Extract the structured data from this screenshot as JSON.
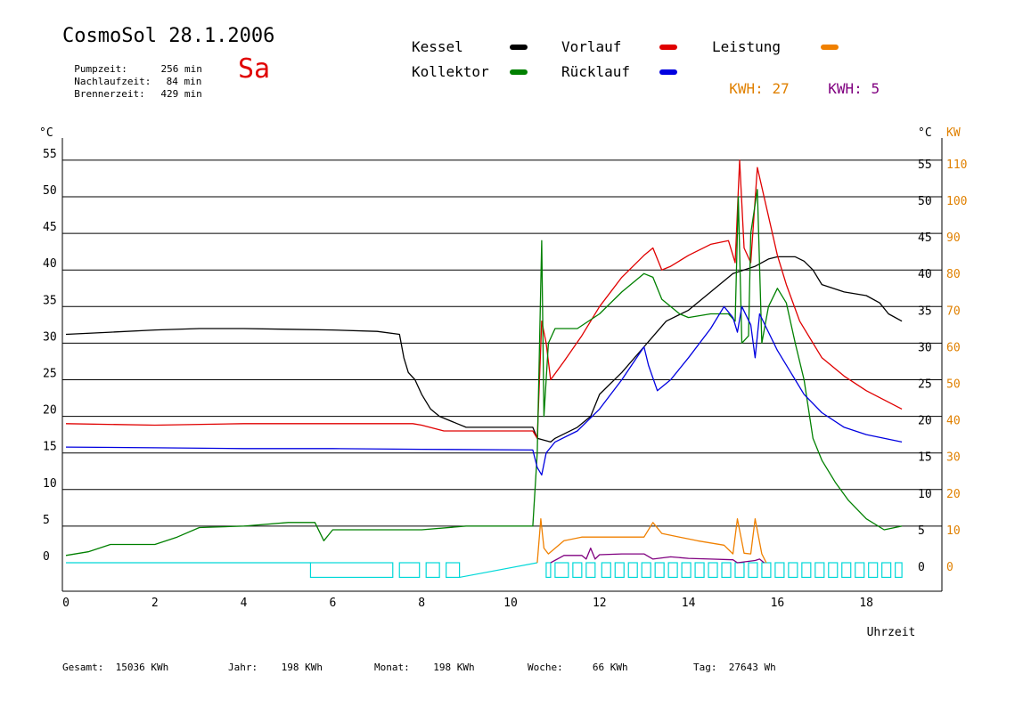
{
  "header": {
    "title": "CosmoSol 28.1.2006",
    "day": "Sa",
    "stats": [
      {
        "label": "Pumpzeit:",
        "value": "256 min"
      },
      {
        "label": "Nachlaufzeit:",
        "value": "84 min"
      },
      {
        "label": "Brennerzeit:",
        "value": "429 min"
      }
    ]
  },
  "legend": {
    "kessel": {
      "label": "Kessel",
      "color": "#000000"
    },
    "vorlauf": {
      "label": "Vorlauf",
      "color": "#e00000"
    },
    "leistung": {
      "label": "Leistung",
      "color": "#f08000"
    },
    "kollektor": {
      "label": "Kollektor",
      "color": "#008000"
    },
    "ruecklauf": {
      "label": "Rücklauf",
      "color": "#0000e0"
    },
    "kwh1": {
      "label": "KWH:",
      "value": "27",
      "color": "#e08000"
    },
    "kwh2": {
      "label": "KWH:",
      "value": "5",
      "color": "#800080"
    }
  },
  "footer": [
    {
      "label": "Gesamt:",
      "value": "15036 KWh"
    },
    {
      "label": "Jahr:",
      "value": "198 KWh"
    },
    {
      "label": "Monat:",
      "value": "198 KWh"
    },
    {
      "label": "Woche:",
      "value": "66 KWh"
    },
    {
      "label": "Tag:",
      "value": "27643 Wh"
    }
  ],
  "chart_data": {
    "type": "line",
    "xlabel": "Uhrzeit",
    "ylabel_left": "°C",
    "ylabel_right": [
      "°C",
      "KW"
    ],
    "xlim": [
      0,
      19.7
    ],
    "ylim": [
      -2.5,
      58
    ],
    "x_ticks": [
      0,
      2,
      4,
      6,
      8,
      10,
      12,
      14,
      16,
      18
    ],
    "y_ticks": [
      0,
      5,
      10,
      15,
      20,
      25,
      30,
      35,
      40,
      45,
      50,
      55
    ],
    "kw_ticks": [
      0,
      10,
      20,
      30,
      40,
      50,
      60,
      70,
      80,
      90,
      100,
      110
    ],
    "grid": "horizontal",
    "series": [
      {
        "name": "Kessel",
        "color": "#000000",
        "points": [
          [
            0,
            31.2
          ],
          [
            1,
            31.5
          ],
          [
            2,
            31.8
          ],
          [
            3,
            32
          ],
          [
            4,
            32
          ],
          [
            5,
            31.9
          ],
          [
            6,
            31.8
          ],
          [
            7,
            31.6
          ],
          [
            7.5,
            31.2
          ],
          [
            7.6,
            28
          ],
          [
            7.7,
            26
          ],
          [
            7.85,
            25
          ],
          [
            8,
            23
          ],
          [
            8.2,
            21
          ],
          [
            8.4,
            20
          ],
          [
            8.8,
            19
          ],
          [
            9,
            18.5
          ],
          [
            10.5,
            18.5
          ],
          [
            10.6,
            17
          ],
          [
            10.9,
            16.5
          ],
          [
            11,
            17
          ],
          [
            11.5,
            18.5
          ],
          [
            11.8,
            20
          ],
          [
            12,
            23
          ],
          [
            12.5,
            26
          ],
          [
            13,
            29.5
          ],
          [
            13.5,
            33
          ],
          [
            14,
            34.5
          ],
          [
            14.5,
            37
          ],
          [
            15,
            39.5
          ],
          [
            15.5,
            40.5
          ],
          [
            15.8,
            41.5
          ],
          [
            16,
            41.8
          ],
          [
            16.4,
            41.8
          ],
          [
            16.6,
            41.2
          ],
          [
            16.8,
            40
          ],
          [
            17,
            38
          ],
          [
            17.5,
            37
          ],
          [
            18,
            36.5
          ],
          [
            18.3,
            35.5
          ],
          [
            18.5,
            34
          ],
          [
            18.8,
            33
          ]
        ]
      },
      {
        "name": "Vorlauf",
        "color": "#e00000",
        "points": [
          [
            0,
            19
          ],
          [
            2,
            18.8
          ],
          [
            4,
            19
          ],
          [
            6,
            19
          ],
          [
            7.8,
            19
          ],
          [
            8,
            18.8
          ],
          [
            8.5,
            18
          ],
          [
            10.5,
            18
          ],
          [
            10.6,
            17
          ],
          [
            10.7,
            33
          ],
          [
            10.8,
            30
          ],
          [
            10.9,
            25
          ],
          [
            11.2,
            27.5
          ],
          [
            11.6,
            31
          ],
          [
            12,
            35
          ],
          [
            12.5,
            39
          ],
          [
            13,
            42
          ],
          [
            13.2,
            43
          ],
          [
            13.4,
            40
          ],
          [
            13.6,
            40.5
          ],
          [
            14,
            42
          ],
          [
            14.5,
            43.5
          ],
          [
            14.9,
            44
          ],
          [
            15.05,
            41
          ],
          [
            15.15,
            55
          ],
          [
            15.25,
            43
          ],
          [
            15.4,
            41
          ],
          [
            15.55,
            54
          ],
          [
            15.7,
            50
          ],
          [
            16,
            42
          ],
          [
            16.2,
            38
          ],
          [
            16.5,
            33
          ],
          [
            17,
            28
          ],
          [
            17.5,
            25.5
          ],
          [
            18,
            23.5
          ],
          [
            18.8,
            21
          ]
        ]
      },
      {
        "name": "Kollektor",
        "color": "#008000",
        "points": [
          [
            0,
            1
          ],
          [
            0.5,
            1.5
          ],
          [
            1,
            2.5
          ],
          [
            2,
            2.5
          ],
          [
            2.5,
            3.5
          ],
          [
            3,
            4.8
          ],
          [
            4,
            5
          ],
          [
            5,
            5.5
          ],
          [
            5.6,
            5.5
          ],
          [
            5.8,
            3
          ],
          [
            6,
            4.5
          ],
          [
            7,
            4.5
          ],
          [
            8,
            4.5
          ],
          [
            9,
            5
          ],
          [
            10.5,
            5
          ],
          [
            10.6,
            15
          ],
          [
            10.7,
            44
          ],
          [
            10.75,
            20
          ],
          [
            10.85,
            30
          ],
          [
            11,
            32
          ],
          [
            11.5,
            32
          ],
          [
            12,
            34
          ],
          [
            12.5,
            37
          ],
          [
            13,
            39.5
          ],
          [
            13.2,
            39
          ],
          [
            13.4,
            36
          ],
          [
            13.8,
            34
          ],
          [
            14,
            33.5
          ],
          [
            14.5,
            34
          ],
          [
            14.9,
            34
          ],
          [
            15.05,
            33
          ],
          [
            15.12,
            50
          ],
          [
            15.2,
            30
          ],
          [
            15.35,
            31
          ],
          [
            15.4,
            45
          ],
          [
            15.55,
            51
          ],
          [
            15.65,
            30
          ],
          [
            15.8,
            35
          ],
          [
            16,
            37.5
          ],
          [
            16.2,
            35.5
          ],
          [
            16.4,
            30
          ],
          [
            16.6,
            25
          ],
          [
            16.8,
            17
          ],
          [
            17,
            14
          ],
          [
            17.3,
            11
          ],
          [
            17.6,
            8.5
          ],
          [
            18,
            6
          ],
          [
            18.4,
            4.5
          ],
          [
            18.8,
            5
          ]
        ]
      },
      {
        "name": "Rücklauf",
        "color": "#0000e0",
        "points": [
          [
            0,
            15.8
          ],
          [
            2,
            15.7
          ],
          [
            4,
            15.6
          ],
          [
            6,
            15.6
          ],
          [
            8,
            15.5
          ],
          [
            10.5,
            15.4
          ],
          [
            10.6,
            13
          ],
          [
            10.7,
            12
          ],
          [
            10.8,
            15
          ],
          [
            11,
            16.5
          ],
          [
            11.5,
            18
          ],
          [
            12,
            21
          ],
          [
            12.5,
            25
          ],
          [
            13,
            29.5
          ],
          [
            13.1,
            27
          ],
          [
            13.3,
            23.5
          ],
          [
            13.6,
            25
          ],
          [
            14,
            28
          ],
          [
            14.5,
            32
          ],
          [
            14.8,
            35
          ],
          [
            15,
            33.5
          ],
          [
            15.1,
            31.5
          ],
          [
            15.2,
            35
          ],
          [
            15.4,
            32.5
          ],
          [
            15.5,
            28
          ],
          [
            15.6,
            34
          ],
          [
            15.8,
            31.5
          ],
          [
            16,
            29
          ],
          [
            16.3,
            26
          ],
          [
            16.6,
            23
          ],
          [
            17,
            20.5
          ],
          [
            17.5,
            18.5
          ],
          [
            18,
            17.5
          ],
          [
            18.8,
            16.5
          ]
        ]
      },
      {
        "name": "Leistung",
        "color": "#f08000",
        "points": [
          [
            10.6,
            0
          ],
          [
            10.68,
            6
          ],
          [
            10.75,
            2
          ],
          [
            10.85,
            1.2
          ],
          [
            11.2,
            3
          ],
          [
            11.6,
            3.5
          ],
          [
            12,
            3.5
          ],
          [
            12.5,
            3.5
          ],
          [
            13,
            3.5
          ],
          [
            13.2,
            5.5
          ],
          [
            13.4,
            4
          ],
          [
            13.8,
            3.5
          ],
          [
            14.2,
            3
          ],
          [
            14.5,
            2.7
          ],
          [
            14.8,
            2.4
          ],
          [
            15,
            1.2
          ],
          [
            15.1,
            6
          ],
          [
            15.25,
            1.3
          ],
          [
            15.4,
            1.2
          ],
          [
            15.5,
            6
          ],
          [
            15.65,
            1.2
          ],
          [
            15.75,
            0
          ]
        ]
      },
      {
        "name": "KWH",
        "color": "#800080",
        "points": [
          [
            10.9,
            0
          ],
          [
            11.2,
            1
          ],
          [
            11.6,
            1
          ],
          [
            11.7,
            0.5
          ],
          [
            11.8,
            2
          ],
          [
            11.9,
            0.5
          ],
          [
            12,
            1.1
          ],
          [
            12.5,
            1.2
          ],
          [
            13,
            1.2
          ],
          [
            13.2,
            0.5
          ],
          [
            13.6,
            0.8
          ],
          [
            14,
            0.6
          ],
          [
            14.5,
            0.5
          ],
          [
            15,
            0.4
          ],
          [
            15.1,
            0
          ],
          [
            15.5,
            0.3
          ],
          [
            15.6,
            0.5
          ],
          [
            15.7,
            0
          ]
        ]
      }
    ],
    "pump_status": {
      "name": "Pumpe",
      "color": "#00d8d8",
      "intervals": [
        [
          5.5,
          7.35
        ],
        [
          7.5,
          7.95
        ],
        [
          8.1,
          8.4
        ],
        [
          8.55,
          8.85
        ],
        [
          10.8,
          10.9
        ],
        [
          11.0,
          11.3
        ],
        [
          11.4,
          11.6
        ],
        [
          11.7,
          11.9
        ],
        [
          12.05,
          12.25
        ],
        [
          12.35,
          12.55
        ],
        [
          12.65,
          12.85
        ],
        [
          12.95,
          13.15
        ],
        [
          13.25,
          13.45
        ],
        [
          13.55,
          13.75
        ],
        [
          13.85,
          14.05
        ],
        [
          14.15,
          14.35
        ],
        [
          14.45,
          14.65
        ],
        [
          14.75,
          14.95
        ],
        [
          15.05,
          15.25
        ],
        [
          15.35,
          15.55
        ],
        [
          15.65,
          15.85
        ],
        [
          15.95,
          16.15
        ],
        [
          16.25,
          16.45
        ],
        [
          16.55,
          16.75
        ],
        [
          16.85,
          17.05
        ],
        [
          17.15,
          17.35
        ],
        [
          17.45,
          17.65
        ],
        [
          17.75,
          17.95
        ],
        [
          18.05,
          18.25
        ],
        [
          18.35,
          18.55
        ],
        [
          18.65,
          18.8
        ]
      ]
    }
  }
}
